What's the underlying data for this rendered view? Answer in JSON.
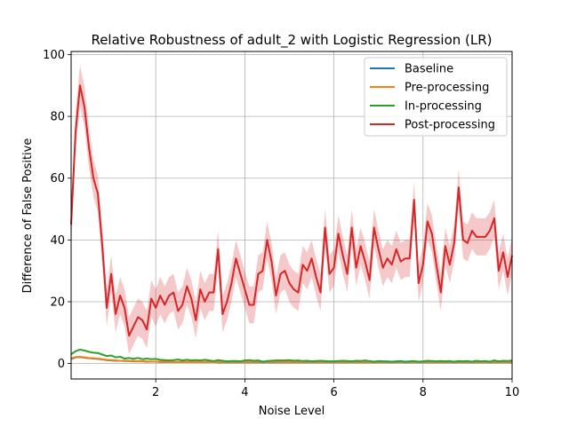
{
  "chart_data": {
    "type": "line",
    "title": "Relative Robustness of adult_2 with Logistic Regression (LR)",
    "xlabel": "Noise Level",
    "ylabel": "Difference of False Positive",
    "xlim": [
      0.1,
      10
    ],
    "ylim": [
      -5,
      101
    ],
    "xticks": [
      2,
      4,
      6,
      8,
      10
    ],
    "yticks": [
      0,
      20,
      40,
      60,
      80,
      100
    ],
    "grid": true,
    "legend_position": "top-right",
    "x": [
      0.1,
      0.2,
      0.3,
      0.4,
      0.5,
      0.6,
      0.7,
      0.8,
      0.9,
      1.0,
      1.1,
      1.2,
      1.3,
      1.4,
      1.5,
      1.6,
      1.7,
      1.8,
      1.9,
      2.0,
      2.1,
      2.2,
      2.3,
      2.4,
      2.5,
      2.6,
      2.7,
      2.8,
      2.9,
      3.0,
      3.1,
      3.2,
      3.3,
      3.4,
      3.5,
      3.6,
      3.7,
      3.8,
      3.9,
      4.0,
      4.1,
      4.2,
      4.3,
      4.4,
      4.5,
      4.6,
      4.7,
      4.8,
      4.9,
      5.0,
      5.1,
      5.2,
      5.3,
      5.4,
      5.5,
      5.6,
      5.7,
      5.8,
      5.9,
      6.0,
      6.1,
      6.2,
      6.3,
      6.4,
      6.5,
      6.6,
      6.7,
      6.8,
      6.9,
      7.0,
      7.1,
      7.2,
      7.3,
      7.4,
      7.5,
      7.6,
      7.7,
      7.8,
      7.9,
      8.0,
      8.1,
      8.2,
      8.3,
      8.4,
      8.5,
      8.6,
      8.7,
      8.8,
      8.9,
      9.0,
      9.1,
      9.2,
      9.3,
      9.4,
      9.5,
      9.6,
      9.7,
      9.8,
      9.9,
      10.0
    ],
    "series": [
      {
        "name": "Baseline",
        "color": "#1f77b4",
        "values": [
          1.5,
          2.0,
          2.1,
          1.9,
          1.7,
          1.6,
          1.5,
          1.3,
          1.1,
          1.0,
          0.9,
          0.9,
          0.8,
          0.8,
          0.7,
          0.7,
          0.7,
          0.6,
          0.6,
          0.6,
          0.5,
          0.5,
          0.5,
          0.5,
          0.5,
          0.5,
          0.5,
          0.5,
          0.5,
          0.5,
          0.5,
          0.5,
          0.5,
          0.4,
          0.4,
          0.4,
          0.4,
          0.4,
          0.4,
          0.4,
          0.4,
          0.4,
          0.4,
          0.4,
          0.4,
          0.4,
          0.4,
          0.4,
          0.4,
          0.4,
          0.4,
          0.4,
          0.4,
          0.4,
          0.4,
          0.4,
          0.4,
          0.4,
          0.4,
          0.4,
          0.4,
          0.4,
          0.4,
          0.4,
          0.4,
          0.4,
          0.4,
          0.4,
          0.4,
          0.4,
          0.4,
          0.4,
          0.4,
          0.4,
          0.4,
          0.4,
          0.4,
          0.4,
          0.4,
          0.4,
          0.4,
          0.4,
          0.4,
          0.4,
          0.4,
          0.4,
          0.4,
          0.4,
          0.4,
          0.4,
          0.4,
          0.4,
          0.4,
          0.4,
          0.4,
          0.4,
          0.4,
          0.4,
          0.4,
          0.4
        ]
      },
      {
        "name": "Pre-processing",
        "color": "#ff7f0e",
        "values": [
          1.7,
          2.1,
          2.2,
          2.0,
          1.8,
          1.7,
          1.6,
          1.4,
          1.2,
          1.1,
          1.0,
          0.9,
          0.9,
          0.8,
          0.8,
          0.7,
          0.7,
          0.7,
          0.6,
          0.6,
          0.6,
          0.6,
          0.5,
          0.5,
          0.5,
          0.5,
          0.5,
          0.5,
          0.5,
          0.5,
          0.5,
          0.5,
          0.5,
          0.5,
          0.5,
          0.5,
          0.5,
          0.5,
          0.5,
          0.5,
          0.5,
          0.5,
          0.5,
          0.5,
          0.5,
          0.5,
          0.5,
          0.5,
          0.5,
          0.5,
          0.5,
          0.5,
          0.5,
          0.5,
          0.5,
          0.5,
          0.5,
          0.5,
          0.5,
          0.5,
          0.5,
          0.5,
          0.5,
          0.5,
          0.5,
          0.5,
          0.5,
          0.5,
          0.5,
          0.5,
          0.5,
          0.5,
          0.5,
          0.5,
          0.5,
          0.5,
          0.5,
          0.5,
          0.5,
          0.5,
          0.5,
          0.5,
          0.5,
          0.5,
          0.5,
          0.5,
          0.5,
          0.5,
          0.5,
          0.5,
          0.5,
          0.5,
          0.5,
          0.5,
          0.5,
          0.5,
          0.5,
          0.5,
          0.5,
          0.5
        ]
      },
      {
        "name": "In-processing",
        "color": "#2ca02c",
        "values": [
          3.0,
          4.0,
          4.5,
          4.2,
          3.8,
          3.5,
          3.4,
          2.9,
          2.4,
          2.6,
          2.0,
          2.2,
          1.6,
          1.8,
          1.5,
          1.8,
          1.4,
          1.6,
          1.4,
          1.5,
          1.2,
          1.1,
          1.0,
          1.1,
          1.3,
          1.0,
          1.2,
          1.0,
          1.1,
          1.0,
          1.2,
          1.0,
          0.8,
          1.1,
          0.9,
          0.7,
          0.8,
          0.8,
          0.7,
          1.0,
          1.1,
          0.9,
          1.0,
          0.6,
          0.8,
          0.9,
          1.0,
          1.0,
          1.0,
          1.1,
          0.9,
          1.0,
          0.8,
          0.9,
          0.7,
          0.8,
          0.9,
          0.8,
          0.7,
          0.7,
          0.8,
          0.9,
          0.8,
          0.7,
          0.9,
          0.8,
          1.0,
          0.8,
          0.6,
          0.8,
          0.7,
          0.7,
          0.6,
          0.7,
          0.8,
          0.6,
          0.7,
          0.8,
          0.6,
          0.7,
          0.9,
          0.8,
          0.7,
          0.8,
          0.7,
          0.8,
          0.6,
          0.8,
          0.7,
          0.8,
          0.6,
          0.9,
          0.7,
          0.8,
          0.6,
          1.0,
          0.7,
          0.9,
          0.8,
          1.0
        ]
      },
      {
        "name": "Post-processing",
        "color": "#d62728",
        "band": 6,
        "values": [
          45,
          75,
          90,
          83,
          70,
          60,
          55,
          38,
          18,
          29,
          16,
          22,
          18,
          9,
          12,
          15,
          14,
          11,
          21,
          18,
          22,
          19,
          22,
          23,
          17,
          19,
          25,
          21,
          14,
          24,
          20,
          23,
          23,
          37,
          16,
          20,
          26,
          34,
          29,
          24,
          19,
          19,
          29,
          30,
          40,
          33,
          22,
          29,
          30,
          26,
          24,
          23,
          32,
          30,
          34,
          28,
          23,
          44,
          29,
          31,
          42,
          35,
          29,
          44,
          31,
          38,
          33,
          27,
          44,
          37,
          31,
          34,
          32,
          37,
          33,
          34,
          34,
          53,
          26,
          32,
          46,
          42,
          32,
          23,
          38,
          32,
          39,
          57,
          40,
          39,
          43,
          41,
          41,
          41,
          43,
          47,
          30,
          36,
          28,
          35
        ]
      }
    ]
  }
}
